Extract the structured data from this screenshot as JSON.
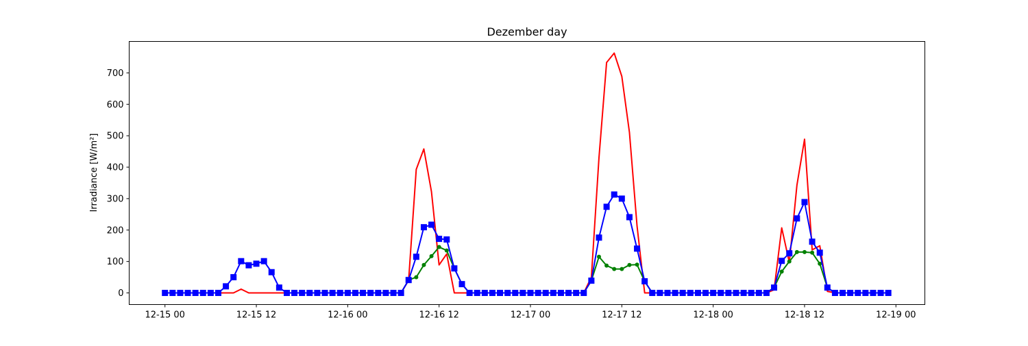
{
  "chart_data": {
    "type": "line",
    "title": "Dezember day",
    "xlabel": "",
    "ylabel": "Irradiance [W/m²]",
    "x_start": "2023-12-15 00:00",
    "x_step": "1 hour",
    "xlim_hours": [
      -4.7,
      99.8
    ],
    "ylim": [
      -37,
      800
    ],
    "x_ticks": [
      {
        "hour": 0,
        "label": "12-15 00"
      },
      {
        "hour": 12,
        "label": "12-15 12"
      },
      {
        "hour": 24,
        "label": "12-16 00"
      },
      {
        "hour": 36,
        "label": "12-16 12"
      },
      {
        "hour": 48,
        "label": "12-17 00"
      },
      {
        "hour": 60,
        "label": "12-17 12"
      },
      {
        "hour": 72,
        "label": "12-18 00"
      },
      {
        "hour": 84,
        "label": "12-18 12"
      },
      {
        "hour": 96,
        "label": "12-19 00"
      }
    ],
    "y_ticks": [
      0,
      100,
      200,
      300,
      400,
      500,
      600,
      700
    ],
    "grid": false,
    "legend": "none",
    "series": [
      {
        "color": "#ff0000",
        "marker": "none",
        "values": [
          0,
          0,
          0,
          0,
          0,
          0,
          0,
          0,
          0,
          0,
          12,
          0,
          0,
          0,
          0,
          0,
          0,
          0,
          0,
          0,
          0,
          0,
          0,
          0,
          0,
          0,
          0,
          0,
          0,
          0,
          0,
          0,
          40,
          393,
          458,
          322,
          89,
          124,
          0,
          0,
          0,
          0,
          0,
          0,
          0,
          0,
          0,
          0,
          0,
          0,
          0,
          0,
          0,
          0,
          0,
          0,
          50,
          430,
          733,
          763,
          689,
          511,
          213,
          0,
          0,
          0,
          0,
          0,
          0,
          0,
          0,
          0,
          0,
          0,
          0,
          0,
          0,
          0,
          0,
          0,
          10,
          207,
          97,
          343,
          489,
          137,
          150,
          5,
          0,
          0,
          0,
          0,
          0,
          0,
          0,
          0
        ]
      },
      {
        "color": "#008000",
        "marker": "circle",
        "values": [
          null,
          null,
          null,
          null,
          null,
          null,
          null,
          null,
          null,
          null,
          null,
          null,
          null,
          null,
          null,
          null,
          null,
          null,
          null,
          null,
          null,
          null,
          null,
          null,
          0,
          0,
          0,
          0,
          0,
          0,
          0,
          0,
          41,
          50,
          89,
          117,
          146,
          135,
          78,
          28,
          0,
          0,
          0,
          0,
          0,
          0,
          0,
          0,
          0,
          0,
          0,
          0,
          0,
          0,
          0,
          0,
          39,
          115,
          87,
          76,
          76,
          89,
          90,
          37,
          0,
          0,
          0,
          0,
          0,
          0,
          0,
          0,
          0,
          0,
          0,
          0,
          0,
          0,
          0,
          0,
          17,
          68,
          100,
          130,
          130,
          128,
          93,
          17,
          0,
          0,
          0,
          0,
          0,
          0,
          0,
          0
        ]
      },
      {
        "color": "#0000ff",
        "marker": "square",
        "values": [
          0,
          0,
          0,
          0,
          0,
          0,
          0,
          0,
          21,
          50,
          101,
          88,
          93,
          101,
          66,
          17,
          0,
          0,
          0,
          0,
          0,
          0,
          0,
          0,
          0,
          0,
          0,
          0,
          0,
          0,
          0,
          0,
          41,
          115,
          209,
          217,
          172,
          170,
          78,
          28,
          0,
          0,
          0,
          0,
          0,
          0,
          0,
          0,
          0,
          0,
          0,
          0,
          0,
          0,
          0,
          0,
          39,
          176,
          274,
          313,
          300,
          241,
          141,
          37,
          0,
          0,
          0,
          0,
          0,
          0,
          0,
          0,
          0,
          0,
          0,
          0,
          0,
          0,
          0,
          0,
          17,
          102,
          126,
          237,
          289,
          163,
          128,
          17,
          0,
          0,
          0,
          0,
          0,
          0,
          0,
          0
        ]
      }
    ]
  }
}
